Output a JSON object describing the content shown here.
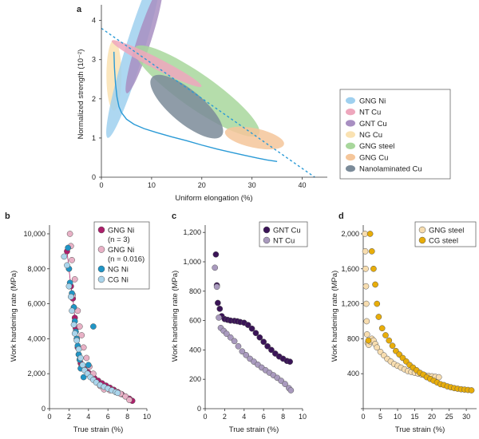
{
  "colors": {
    "gng_ni": "#ad1f6b",
    "gng_ni2": "#e8b1c6",
    "ng_ni": "#1f95c6",
    "cg_ni": "#aad5ec",
    "gnt_cu": "#3a1457",
    "nt_cu": "#a99abe",
    "gng_steel": "#f7ddb0",
    "cg_steel": "#e8ad0a",
    "curve": "#2a9ad6",
    "el_gng_ni": "#9fd0ef",
    "el_nt_cu": "#eea7bd",
    "el_gnt_cu": "#a88fc2",
    "el_ng_cu": "#fae2b2",
    "el_gng_steel": "#a8d79c",
    "el_gng_cu": "#f5c69a",
    "el_nanolam": "#7b8b99"
  },
  "chart_data": [
    {
      "panel": "a",
      "type": "scatter",
      "xlabel": "Uniform elongation (%)",
      "ylabel": "Normalized strength (10⁻²)",
      "xlim": [
        0,
        45
      ],
      "ylim": [
        0,
        4.4
      ],
      "xticks": [
        "0",
        "10",
        "20",
        "30",
        "40"
      ],
      "yticks": [
        "0",
        "1",
        "2",
        "3",
        "4"
      ],
      "grid": false,
      "legend_position": "right",
      "legend": [
        {
          "label": "GNG Ni",
          "color": "#9fd0ef"
        },
        {
          "label": "NT Cu",
          "color": "#eea7bd"
        },
        {
          "label": "GNT Cu",
          "color": "#a88fc2"
        },
        {
          "label": "NG Cu",
          "color": "#fae2b2"
        },
        {
          "label": "GNG steel",
          "color": "#a8d79c"
        },
        {
          "label": "GNG Cu",
          "color": "#f5c69a"
        },
        {
          "label": "Nanolaminated Cu",
          "color": "#7b8b99"
        }
      ],
      "regions": [
        {
          "name": "NG Cu",
          "cx": 2.5,
          "cy": 2.6,
          "rx": 0.9,
          "ry": 0.6,
          "angle": 90
        },
        {
          "name": "GNG Ni",
          "cx": 6.5,
          "cy": 3.2,
          "rx": 2.4,
          "ry": 0.75,
          "angle": 73
        },
        {
          "name": "GNT Cu",
          "cx": 8.5,
          "cy": 3.5,
          "rx": 1.5,
          "ry": 0.55,
          "angle": 72
        },
        {
          "name": "GNG steel",
          "cx": 19,
          "cy": 2.2,
          "rx": 15,
          "ry": 2.3,
          "angle": -35
        },
        {
          "name": "Nanolaminated Cu",
          "cx": 17,
          "cy": 1.8,
          "rx": 9,
          "ry": 2.2,
          "angle": -40
        },
        {
          "name": "NT Cu",
          "cx": 11,
          "cy": 2.9,
          "rx": 10,
          "ry": 0.75,
          "angle": -27
        },
        {
          "name": "GNG Cu",
          "cx": 30.5,
          "cy": 1.0,
          "rx": 6,
          "ry": 1.3,
          "angle": -12
        }
      ],
      "curve": {
        "x": [
          2.5,
          2.6,
          2.8,
          3.1,
          3.5,
          4.0,
          5.0,
          6.5,
          8.5,
          11,
          14,
          17,
          20,
          23,
          26,
          28.5,
          31,
          33,
          35
        ],
        "y": [
          3.2,
          2.8,
          2.4,
          2.05,
          1.8,
          1.65,
          1.48,
          1.35,
          1.24,
          1.14,
          1.03,
          0.93,
          0.82,
          0.72,
          0.63,
          0.56,
          0.49,
          0.44,
          0.4
        ]
      },
      "dashed_line": {
        "x": [
          0,
          42.5
        ],
        "y": [
          3.8,
          0
        ]
      }
    },
    {
      "panel": "b",
      "type": "scatter",
      "xlabel": "True strain (%)",
      "ylabel": "Work hardening rate (MPa)",
      "xlim": [
        0,
        10
      ],
      "ylim": [
        0,
        10500
      ],
      "xticks": [
        "0",
        "2",
        "4",
        "6",
        "8",
        "10"
      ],
      "yticks": [
        "0",
        "2,000",
        "4,000",
        "6,000",
        "8,000",
        "10,000"
      ],
      "legend_position": "top-right",
      "legend": [
        {
          "label": "GNG Ni",
          "sublabel": "(n = 3)",
          "color": "#ad1f6b"
        },
        {
          "label": "GNG Ni",
          "sublabel": "(n = 0.016)",
          "color": "#e8b1c6"
        },
        {
          "label": "NG Ni",
          "color": "#1f95c6"
        },
        {
          "label": "CG Ni",
          "color": "#aad5ec"
        }
      ],
      "series": [
        {
          "name": "GNG Ni (n=3)",
          "color": "#ad1f6b",
          "x": [
            1.8,
            2.0,
            2.2,
            2.4,
            2.5,
            2.6,
            2.7,
            2.8,
            2.9,
            3.0,
            3.1,
            3.2,
            3.3,
            3.4,
            3.6,
            3.8,
            4.0,
            4.3,
            4.6,
            5.0,
            5.4,
            5.8,
            6.2,
            6.6,
            7.0,
            7.4,
            7.8,
            8.2,
            8.5
          ],
          "y": [
            9000,
            8000,
            7000,
            6300,
            5800,
            5200,
            4600,
            4000,
            3500,
            3100,
            2800,
            2600,
            2450,
            2350,
            2250,
            2150,
            2050,
            1900,
            1750,
            1600,
            1450,
            1320,
            1200,
            1080,
            950,
            830,
            700,
            570,
            450
          ]
        },
        {
          "name": "GNG Ni (n=0.016)",
          "color": "#e8b1c6",
          "x": [
            2.1,
            2.2,
            2.3,
            2.6,
            2.4,
            2.9,
            3.1,
            3.3,
            3.5,
            3.8,
            4.1,
            4.5,
            5.2,
            5.6,
            6.2,
            6.8,
            7.3,
            7.8,
            8.2
          ],
          "y": [
            10000,
            9300,
            8500,
            7400,
            6500,
            5600,
            4700,
            4200,
            3500,
            2900,
            2400,
            2000,
            1300,
            1100,
            1050,
            950,
            850,
            700,
            500
          ]
        },
        {
          "name": "NG Ni",
          "color": "#1f95c6",
          "x": [
            1.9,
            2.0,
            2.1,
            2.3,
            2.5,
            2.6,
            2.7,
            2.8,
            2.9,
            3.0,
            3.1,
            3.2,
            3.5,
            4.0,
            4.5
          ],
          "y": [
            9200,
            8000,
            7200,
            6600,
            5800,
            5000,
            4400,
            4000,
            3600,
            3100,
            2800,
            2300,
            1800,
            2500,
            4700
          ]
        },
        {
          "name": "CG Ni",
          "color": "#aad5ec",
          "x": [
            1.5,
            1.8,
            2.0,
            2.2,
            2.3,
            2.5,
            2.6,
            2.8,
            3.0,
            3.2,
            3.4,
            3.6,
            3.9,
            4.2,
            4.5,
            4.8,
            5.2,
            5.6,
            6.0,
            6.4,
            6.8,
            7.0
          ],
          "y": [
            8700,
            8200,
            7000,
            6400,
            5600,
            4800,
            4300,
            3900,
            3400,
            2900,
            2500,
            2200,
            2000,
            1800,
            1650,
            1500,
            1350,
            1250,
            1150,
            1050,
            950,
            900
          ]
        }
      ]
    },
    {
      "panel": "c",
      "type": "scatter",
      "xlabel": "True strain (%)",
      "ylabel": "Work hardening rate (MPa)",
      "xlim": [
        0,
        10
      ],
      "ylim": [
        0,
        1250
      ],
      "xticks": [
        "0",
        "2",
        "4",
        "6",
        "8",
        "10"
      ],
      "yticks": [
        "0",
        "200",
        "400",
        "600",
        "800",
        "1,000",
        "1,200"
      ],
      "legend_position": "top-right",
      "legend": [
        {
          "label": "GNT Cu",
          "color": "#3a1457"
        },
        {
          "label": "NT Cu",
          "color": "#a99abe"
        }
      ],
      "series": [
        {
          "name": "GNT Cu",
          "color": "#3a1457",
          "x": [
            1.1,
            1.2,
            1.3,
            1.5,
            1.7,
            2.0,
            2.3,
            2.6,
            3.0,
            3.3,
            3.6,
            4.0,
            4.4,
            4.8,
            5.2,
            5.6,
            6.0,
            6.4,
            6.8,
            7.2,
            7.6,
            8.0,
            8.4,
            8.7
          ],
          "y": [
            1050,
            840,
            720,
            680,
            630,
            610,
            605,
            600,
            598,
            595,
            590,
            585,
            570,
            545,
            515,
            485,
            455,
            425,
            400,
            375,
            355,
            340,
            325,
            320
          ]
        },
        {
          "name": "NT Cu",
          "color": "#a99abe",
          "x": [
            1.0,
            1.2,
            1.4,
            1.6,
            1.9,
            2.2,
            2.6,
            3.0,
            3.4,
            3.8,
            4.2,
            4.6,
            5.0,
            5.4,
            5.8,
            6.2,
            6.6,
            7.0,
            7.4,
            7.8,
            8.2,
            8.6,
            8.8
          ],
          "y": [
            960,
            830,
            620,
            550,
            530,
            510,
            485,
            460,
            425,
            390,
            365,
            340,
            320,
            300,
            280,
            262,
            245,
            228,
            210,
            190,
            168,
            140,
            125
          ]
        }
      ]
    },
    {
      "panel": "d",
      "type": "scatter",
      "xlabel": "True strain (%)",
      "ylabel": "Work hardening rate (MPa)",
      "xlim": [
        0,
        33
      ],
      "ylim": [
        0,
        2100
      ],
      "xticks": [
        "0",
        "5",
        "10",
        "15",
        "20",
        "25",
        "30"
      ],
      "yticks": [
        "400",
        "800",
        "1,200",
        "1,600",
        "2,000"
      ],
      "legend_position": "top-right",
      "legend": [
        {
          "label": "GNG steel",
          "color": "#f7ddb0"
        },
        {
          "label": "CG steel",
          "color": "#e8ad0a"
        }
      ],
      "series": [
        {
          "name": "GNG steel",
          "color": "#f7ddb0",
          "x": [
            0.5,
            0.6,
            0.7,
            0.8,
            0.9,
            1.0,
            1.1,
            1.3,
            1.6,
            2.0,
            2.5,
            3.0,
            3.5,
            4.0,
            5.0,
            6.0,
            7.0,
            8.0,
            9.0,
            10.0,
            11.0,
            12.0,
            13.0,
            14.0,
            15.0,
            16.0,
            17.0,
            18.0,
            19.0,
            20.0,
            21.0,
            22.0
          ],
          "y": [
            2000,
            1800,
            1600,
            1400,
            1200,
            1000,
            850,
            750,
            730,
            770,
            800,
            780,
            740,
            700,
            650,
            610,
            570,
            540,
            510,
            490,
            470,
            450,
            430,
            420,
            410,
            400,
            390,
            380,
            375,
            370,
            365,
            360
          ]
        },
        {
          "name": "CG steel",
          "color": "#e8ad0a",
          "x": [
            1.5,
            2.0,
            2.5,
            3.0,
            3.5,
            4.0,
            4.5,
            5.5,
            6.5,
            7.5,
            8.5,
            9.5,
            10.5,
            11.5,
            12.5,
            13.5,
            14.5,
            15.5,
            16.5,
            17.5,
            18.5,
            19.5,
            20.5,
            21.5,
            22.5,
            23.5,
            24.5,
            25.5,
            26.5,
            27.5,
            28.5,
            29.5,
            30.5,
            31.5
          ],
          "y": [
            780,
            2000,
            1800,
            1600,
            1420,
            1200,
            1050,
            920,
            840,
            780,
            720,
            660,
            620,
            580,
            540,
            500,
            470,
            440,
            410,
            390,
            360,
            340,
            320,
            300,
            280,
            270,
            255,
            245,
            235,
            228,
            222,
            218,
            214,
            210
          ]
        }
      ]
    }
  ]
}
